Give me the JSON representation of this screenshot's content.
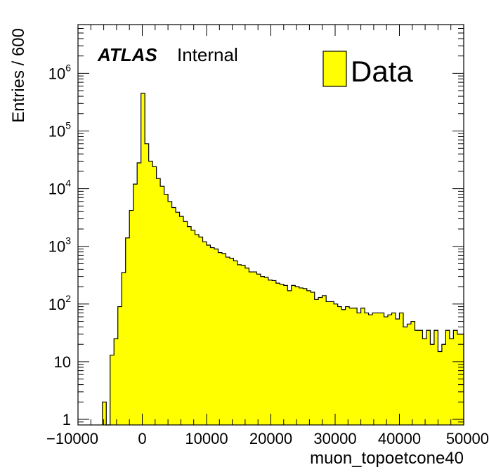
{
  "chart_data": {
    "type": "bar",
    "xlabel": "muon_topoetcone40",
    "ylabel": "Entries / 600",
    "xlim": [
      -10000,
      50000
    ],
    "ylim": [
      0.8,
      7000000
    ],
    "y_scale": "log",
    "bin_width": 600,
    "x_ticks": [
      "−10000",
      "0",
      "10000",
      "20000",
      "30000",
      "40000",
      "50000"
    ],
    "x_tick_values": [
      -10000,
      0,
      10000,
      20000,
      30000,
      40000,
      50000
    ],
    "y_ticks": [
      {
        "value": 1,
        "base": "1",
        "exp": ""
      },
      {
        "value": 10,
        "base": "10",
        "exp": ""
      },
      {
        "value": 100,
        "base": "10",
        "exp": "2"
      },
      {
        "value": 1000,
        "base": "10",
        "exp": "3"
      },
      {
        "value": 10000,
        "base": "10",
        "exp": "4"
      },
      {
        "value": 100000,
        "base": "10",
        "exp": "5"
      },
      {
        "value": 1000000,
        "base": "10",
        "exp": "6"
      }
    ],
    "series": [
      {
        "name": "Data",
        "color": "#ffff00",
        "edges": [
          -6200,
          -5600,
          -5000,
          -4400,
          -3800,
          -3200,
          -2600,
          -2000,
          -1400,
          -800,
          -200,
          400,
          1000,
          1600,
          2200,
          2800,
          3400,
          4000,
          4600,
          5200,
          5800,
          6400,
          7000,
          7600,
          8200,
          8800,
          9400,
          10000,
          10600,
          11200,
          11800,
          12400,
          13000,
          13600,
          14200,
          14800,
          15400,
          16000,
          16600,
          17200,
          17800,
          18400,
          19000,
          19600,
          20200,
          20800,
          21400,
          22000,
          22600,
          23200,
          23800,
          24400,
          25000,
          25600,
          26200,
          26800,
          27400,
          28000,
          28600,
          29200,
          29800,
          30400,
          31000,
          31600,
          32200,
          32800,
          33400,
          34000,
          34600,
          35200,
          35800,
          36400,
          37000,
          37600,
          38200,
          38800,
          39400,
          40000,
          40600,
          41200,
          41800,
          42400,
          43000,
          43600,
          44200,
          44800,
          45400,
          46000,
          46600,
          47200,
          47800,
          48400,
          49000,
          49600,
          50000
        ],
        "values": [
          2,
          0,
          13,
          25,
          90,
          350,
          1400,
          4200,
          12000,
          28000,
          450000,
          60000,
          30000,
          24000,
          15000,
          11000,
          8000,
          6000,
          4700,
          3900,
          3300,
          2700,
          2200,
          1900,
          1600,
          1450,
          1200,
          1050,
          950,
          900,
          780,
          750,
          650,
          620,
          560,
          480,
          470,
          420,
          360,
          360,
          330,
          300,
          290,
          260,
          255,
          230,
          220,
          210,
          170,
          210,
          200,
          190,
          185,
          170,
          160,
          120,
          130,
          140,
          110,
          110,
          100,
          90,
          80,
          90,
          85,
          85,
          70,
          85,
          70,
          65,
          70,
          70,
          70,
          60,
          65,
          70,
          55,
          70,
          40,
          45,
          50,
          35,
          35,
          25,
          35,
          20,
          35,
          15,
          20,
          35,
          25,
          35,
          30,
          30
        ]
      }
    ],
    "annotations": {
      "experiment": "ATLAS",
      "status": "Internal"
    },
    "legend": {
      "label": "Data",
      "placement": "top-right"
    }
  }
}
